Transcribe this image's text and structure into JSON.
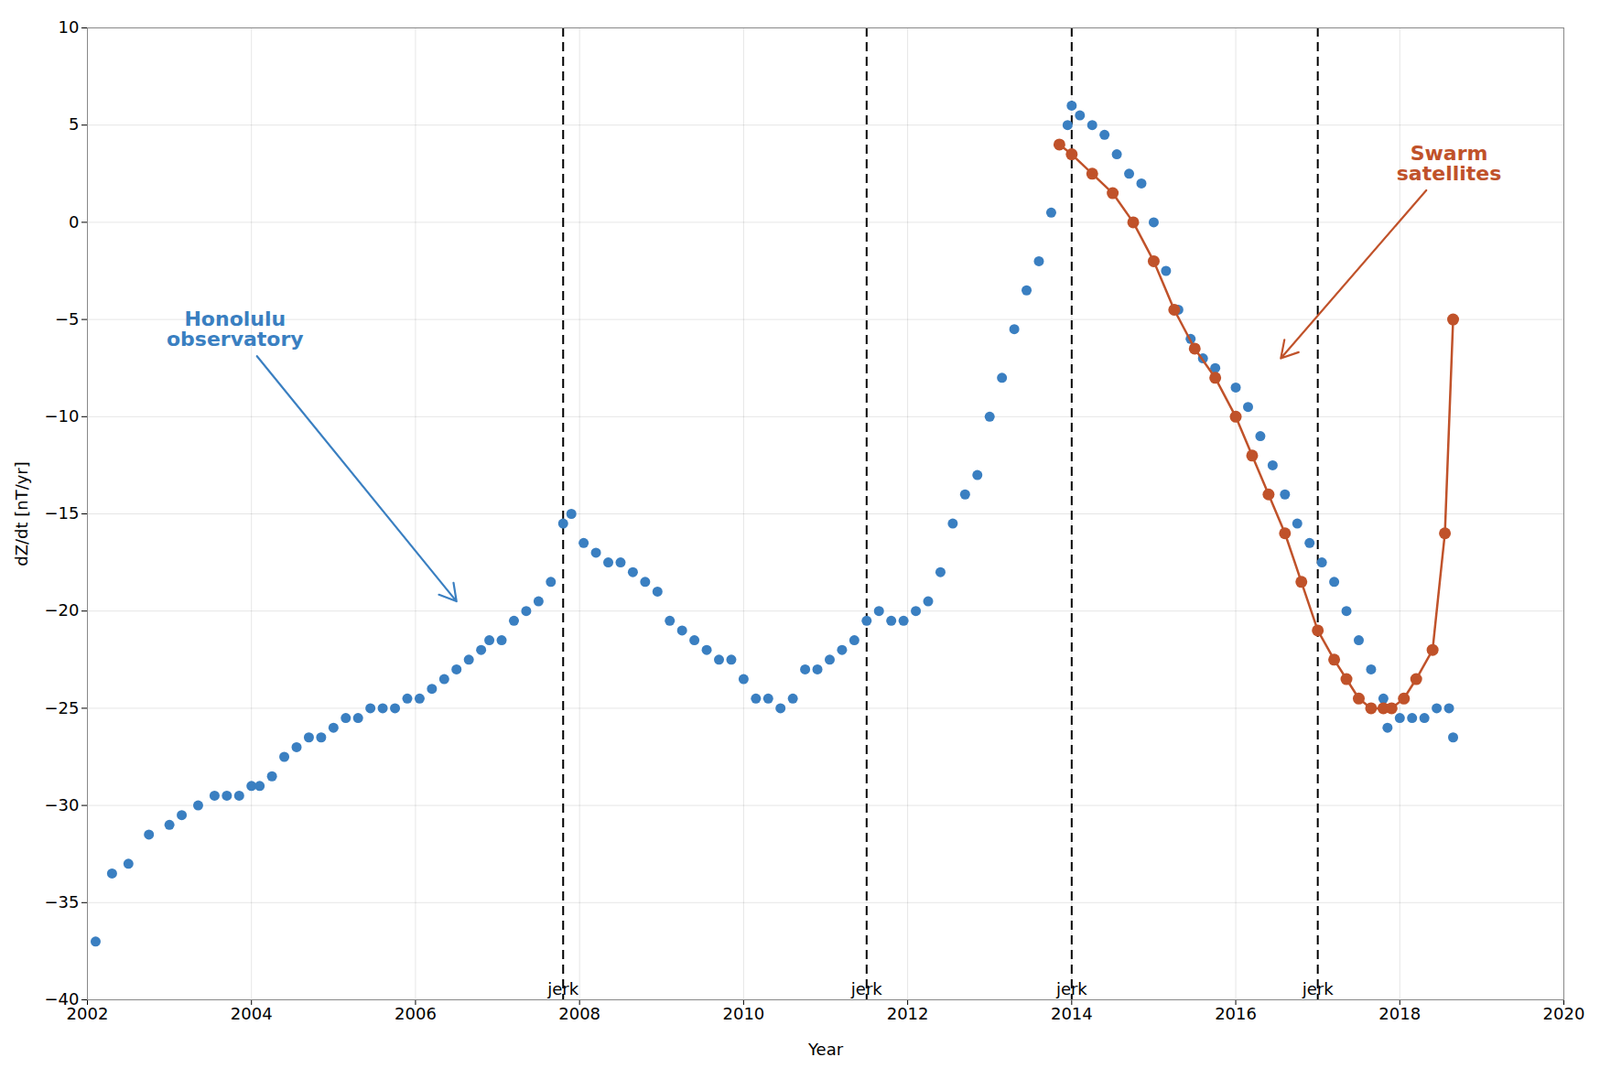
{
  "chart_data": {
    "type": "scatter",
    "xlabel": "Year",
    "ylabel": "dZ/dt [nT/yr]",
    "xlim": [
      2002,
      2020
    ],
    "ylim": [
      -40,
      10
    ],
    "xticks": [
      2002,
      2004,
      2006,
      2008,
      2010,
      2012,
      2014,
      2016,
      2018,
      2020
    ],
    "yticks": [
      -40,
      -35,
      -30,
      -25,
      -20,
      -15,
      -10,
      -5,
      0,
      5,
      10
    ],
    "grid": true,
    "series": [
      {
        "type": "scatter",
        "marker": "circle",
        "color": "#3a7fc1",
        "x": [
          2002.1,
          2002.3,
          2002.5,
          2002.75,
          2003.0,
          2003.15,
          2003.35,
          2003.55,
          2003.7,
          2003.85,
          2004.0,
          2004.1,
          2004.25,
          2004.4,
          2004.55,
          2004.7,
          2004.85,
          2005.0,
          2005.15,
          2005.3,
          2005.45,
          2005.6,
          2005.75,
          2005.9,
          2006.05,
          2006.2,
          2006.35,
          2006.5,
          2006.65,
          2006.8,
          2006.9,
          2007.05,
          2007.2,
          2007.35,
          2007.5,
          2007.65,
          2007.8,
          2007.9,
          2008.05,
          2008.2,
          2008.35,
          2008.5,
          2008.65,
          2008.8,
          2008.95,
          2009.1,
          2009.25,
          2009.4,
          2009.55,
          2009.7,
          2009.85,
          2010.0,
          2010.15,
          2010.3,
          2010.45,
          2010.6,
          2010.75,
          2010.9,
          2011.05,
          2011.2,
          2011.35,
          2011.5,
          2011.65,
          2011.8,
          2011.95,
          2012.1,
          2012.25,
          2012.4,
          2012.55,
          2012.7,
          2012.85,
          2013.0,
          2013.15,
          2013.3,
          2013.45,
          2013.6,
          2013.75,
          2013.85,
          2013.95,
          2014.0,
          2014.1,
          2014.25,
          2014.4,
          2014.55,
          2014.7,
          2014.85,
          2015.0,
          2015.15,
          2015.3,
          2015.45,
          2015.6,
          2015.75,
          2016.0,
          2016.15,
          2016.3,
          2016.45,
          2016.6,
          2016.75,
          2016.9,
          2017.05,
          2017.2,
          2017.35,
          2017.5,
          2017.65,
          2017.8,
          2017.85,
          2018.0,
          2018.15,
          2018.3,
          2018.45,
          2018.6,
          2018.65
        ],
        "values": [
          -37.0,
          -33.5,
          -33.0,
          -31.5,
          -31.0,
          -30.5,
          -30.0,
          -29.5,
          -29.5,
          -29.5,
          -29.0,
          -29.0,
          -28.5,
          -27.5,
          -27.0,
          -26.5,
          -26.5,
          -26.0,
          -25.5,
          -25.5,
          -25.0,
          -25.0,
          -25.0,
          -24.5,
          -24.5,
          -24.0,
          -23.5,
          -23.0,
          -22.5,
          -22.0,
          -21.5,
          -21.5,
          -20.5,
          -20.0,
          -19.5,
          -18.5,
          -15.5,
          -15.0,
          -16.5,
          -17.0,
          -17.5,
          -17.5,
          -18.0,
          -18.5,
          -19.0,
          -20.5,
          -21.0,
          -21.5,
          -22.0,
          -22.5,
          -22.5,
          -23.5,
          -24.5,
          -24.5,
          -25.0,
          -24.5,
          -23.0,
          -23.0,
          -22.5,
          -22.0,
          -21.5,
          -20.5,
          -20.0,
          -20.5,
          -20.5,
          -20.0,
          -19.5,
          -18.0,
          -15.5,
          -14.0,
          -13.0,
          -10.0,
          -8.0,
          -5.5,
          -3.5,
          -2.0,
          0.5,
          4.0,
          5.0,
          6.0,
          5.5,
          5.0,
          4.5,
          3.5,
          2.5,
          2.0,
          0.0,
          -2.5,
          -4.5,
          -6.0,
          -7.0,
          -7.5,
          -8.5,
          -9.5,
          -11.0,
          -12.5,
          -14.0,
          -15.5,
          -16.5,
          -17.5,
          -18.5,
          -20.0,
          -21.5,
          -23.0,
          -24.5,
          -26.0,
          -25.5,
          -25.5,
          -25.5,
          -25.0,
          -25.0,
          -26.5
        ]
      },
      {
        "type": "line",
        "marker": "circle",
        "color": "#c0522a",
        "x": [
          2013.85,
          2014.0,
          2014.25,
          2014.5,
          2014.75,
          2015.0,
          2015.25,
          2015.5,
          2015.75,
          2016.0,
          2016.2,
          2016.4,
          2016.6,
          2016.8,
          2017.0,
          2017.2,
          2017.35,
          2017.5,
          2017.65,
          2017.8,
          2017.9,
          2018.05,
          2018.2,
          2018.4,
          2018.55,
          2018.65
        ],
        "values": [
          4.0,
          3.5,
          2.5,
          1.5,
          0.0,
          -2.0,
          -4.5,
          -6.5,
          -8.0,
          -10.0,
          -12.0,
          -14.0,
          -16.0,
          -18.5,
          -21.0,
          -22.5,
          -23.5,
          -24.5,
          -25.0,
          -25.0,
          -25.0,
          -24.5,
          -23.5,
          -22.0,
          -16.0,
          -5.0
        ]
      }
    ],
    "vertical_lines": [
      {
        "x": 2007.8,
        "label": "jerk",
        "color": "#000000",
        "line_style": "dashed"
      },
      {
        "x": 2011.5,
        "label": "jerk",
        "color": "#000000",
        "line_style": "dashed"
      },
      {
        "x": 2014.0,
        "label": "jerk",
        "color": "#000000",
        "line_style": "dashed"
      },
      {
        "x": 2017.0,
        "label": "jerk",
        "color": "#000000",
        "line_style": "dashed"
      }
    ],
    "annotations": [
      {
        "text": "Honolulu\nobservatory",
        "x": 2003.8,
        "y": -5.5,
        "arrow_x": 2006.5,
        "arrow_y": -19.5,
        "color": "#3a7fc1"
      },
      {
        "text": "Swarm\nsatellites",
        "x": 2018.6,
        "y": 3.0,
        "arrow_x": 2016.55,
        "arrow_y": -7.0,
        "color": "#c0522a"
      }
    ]
  }
}
